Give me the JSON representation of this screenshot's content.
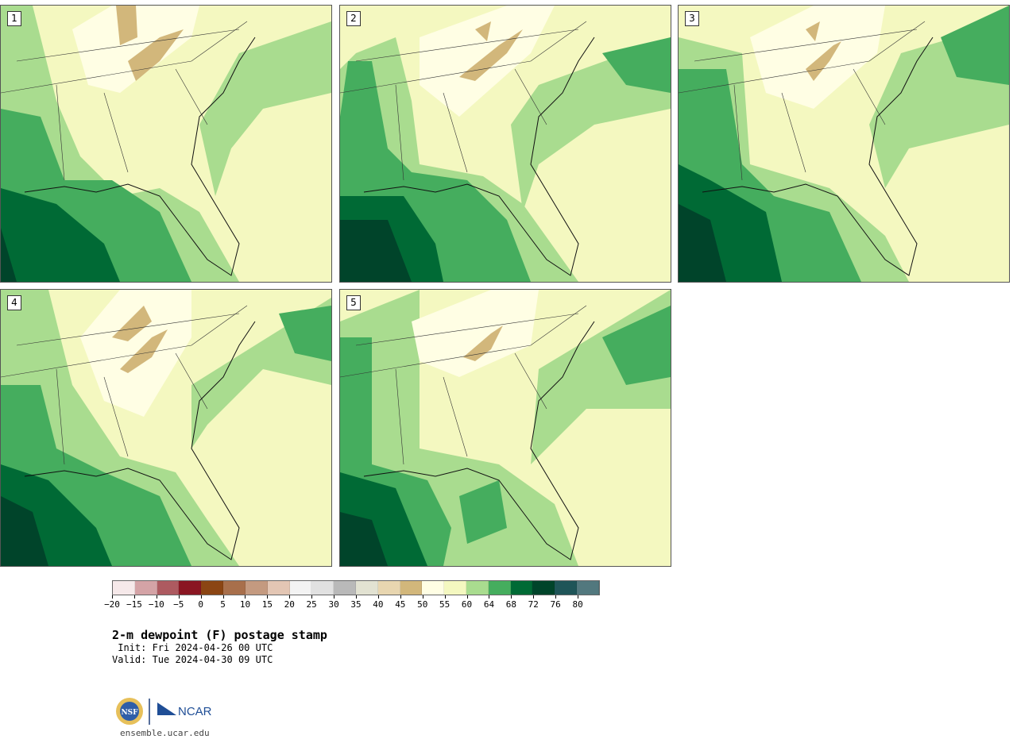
{
  "panels": [
    {
      "label": "1"
    },
    {
      "label": "2"
    },
    {
      "label": "3"
    },
    {
      "label": "4"
    },
    {
      "label": "5"
    }
  ],
  "colorbar": {
    "colors": [
      "#f6e9ea",
      "#d4a3a6",
      "#ad5a60",
      "#8a1622",
      "#8b4513",
      "#a86f4b",
      "#c49a80",
      "#e3c6b4",
      "#f3f3f3",
      "#e1e1e1",
      "#b9b9b9",
      "#e2e2d2",
      "#e8d6b0",
      "#d2b77b",
      "#fffee4",
      "#f4f8c0",
      "#a9dc8f",
      "#45ad5e",
      "#006a35",
      "#00442a",
      "#1f5558",
      "#52787e"
    ],
    "tick_labels": [
      "−20",
      "−15",
      "−10",
      "−5",
      "0",
      "5",
      "10",
      "15",
      "20",
      "25",
      "30",
      "35",
      "40",
      "45",
      "50",
      "55",
      "60",
      "64",
      "68",
      "72",
      "76",
      "80"
    ]
  },
  "title": "2-m dewpoint (F) postage stamp",
  "init": " Init: Fri 2024-04-26 00 UTC",
  "valid": "Valid: Tue 2024-04-30 09 UTC",
  "logos": {
    "nsf_text": "NSF",
    "ncar_text": "NCAR"
  },
  "site": "ensemble.ucar.edu"
}
